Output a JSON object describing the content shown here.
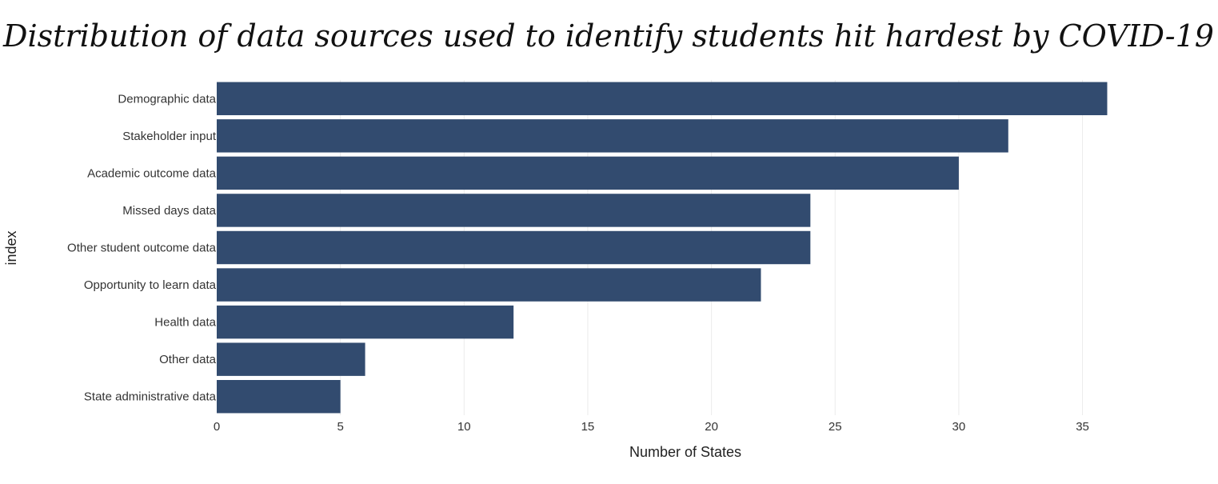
{
  "chart_data": {
    "type": "bar",
    "orientation": "horizontal",
    "title": "Distribution of data sources used to identify students hit hardest by COVID-19",
    "xlabel": "Number of States",
    "ylabel": "index",
    "categories": [
      "Demographic data",
      "Stakeholder input",
      "Academic outcome data",
      "Missed days data",
      "Other student outcome data",
      "Opportunity to learn data",
      "Health data",
      "Other data",
      "State administrative data"
    ],
    "values": [
      36,
      32,
      30,
      24,
      24,
      22,
      12,
      6,
      5
    ],
    "xlim": [
      0,
      38
    ],
    "xticks": [
      0,
      5,
      10,
      15,
      20,
      25,
      30,
      35
    ],
    "bar_color": "#324b6f",
    "grid": true,
    "legend": "none"
  }
}
